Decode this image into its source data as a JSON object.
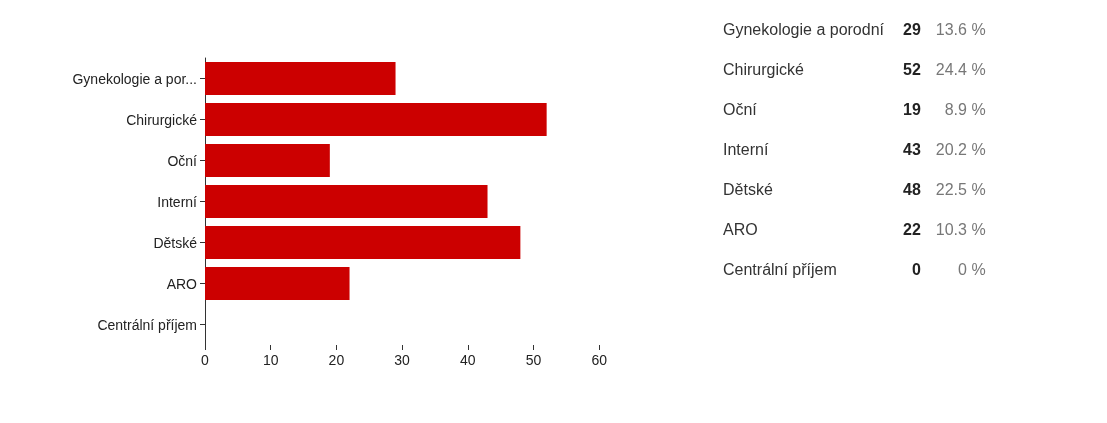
{
  "chart_data": [
    {
      "type": "bar",
      "orientation": "horizontal",
      "categories": [
        "Gynekologie a por...",
        "Chirurgické",
        "Oční",
        "Interní",
        "Dětské",
        "ARO",
        "Centrální příjem"
      ],
      "values": [
        29,
        52,
        19,
        43,
        48,
        22,
        0
      ],
      "color": "#cc0000",
      "xlim": [
        0,
        60
      ],
      "xticks": [
        0,
        10,
        20,
        30,
        40,
        50,
        60
      ],
      "grid": false
    },
    {
      "type": "other",
      "categories": [
        "Gynekologie a porodní",
        "Chirurgické",
        "Oční",
        "Interní",
        "Dětské",
        "ARO",
        "Centrální příjem"
      ],
      "data_labels": true,
      "series": [
        {
          "values": [
            29,
            52,
            19,
            43,
            48,
            22,
            0
          ]
        },
        {
          "values": [
            13.6,
            24.4,
            8.9,
            20.2,
            22.5,
            10.3,
            0
          ],
          "value_labels": [
            "13.6 %",
            "24.4 %",
            "8.9 %",
            "20.2 %",
            "22.5 %",
            "10.3 %",
            "0 %"
          ]
        }
      ]
    }
  ]
}
